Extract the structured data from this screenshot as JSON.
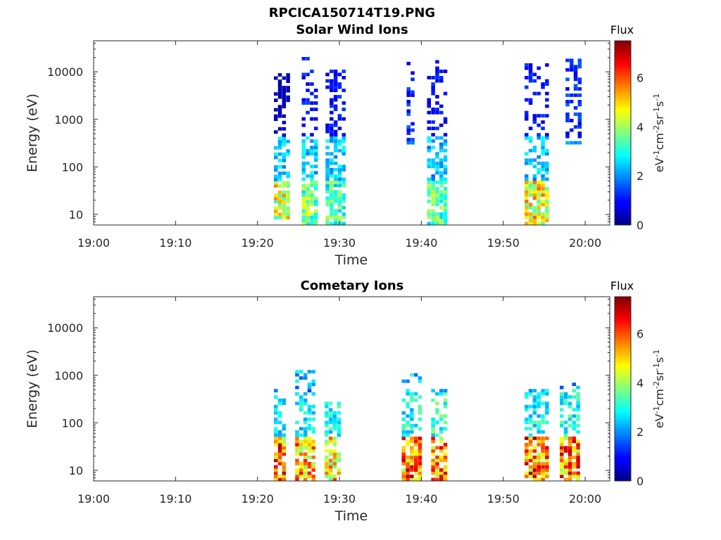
{
  "figure_title": "RPCICA150714T19.PNG",
  "colormap": "jet",
  "chart_data": [
    {
      "type": "heatmap",
      "title": "Solar Wind Ions",
      "xlabel": "Time",
      "ylabel": "Energy (eV)",
      "x_ticks": [
        "19:00",
        "19:10",
        "19:20",
        "19:30",
        "19:40",
        "19:50",
        "20:00"
      ],
      "x_range_minutes": [
        0,
        63
      ],
      "y_scale": "log",
      "y_ticks": [
        "10",
        "100",
        "1000",
        "10000"
      ],
      "y_range": [
        6,
        45000
      ],
      "colorbar": {
        "title": "Flux",
        "unit": "eV-1cm-2sr-1s-1",
        "ticks": [
          "0",
          "2",
          "4",
          "6"
        ],
        "range": [
          0,
          7.5
        ]
      },
      "clusters": [
        {
          "t_start": 22.0,
          "t_end": 23.8,
          "e_min": 8,
          "e_max": 9000,
          "low_peak": 5.6,
          "mid_value": 2.4,
          "high_value": 0.4
        },
        {
          "t_start": 25.4,
          "t_end": 27.2,
          "e_min": 6,
          "e_max": 18000,
          "low_peak": 4.6,
          "mid_value": 2.6,
          "high_value": 1.0
        },
        {
          "t_start": 28.3,
          "t_end": 30.4,
          "e_min": 6,
          "e_max": 12000,
          "low_peak": 4.2,
          "mid_value": 2.6,
          "high_value": 1.0
        },
        {
          "t_start": 38.2,
          "t_end": 39.2,
          "e_min": 300,
          "e_max": 14000,
          "low_peak": 0,
          "mid_value": 1.6,
          "high_value": 1.2
        },
        {
          "t_start": 40.7,
          "t_end": 43.1,
          "e_min": 6,
          "e_max": 16000,
          "low_peak": 4.4,
          "mid_value": 2.4,
          "high_value": 1.0
        },
        {
          "t_start": 52.6,
          "t_end": 55.5,
          "e_min": 6,
          "e_max": 15000,
          "low_peak": 5.9,
          "mid_value": 2.5,
          "high_value": 1.0
        },
        {
          "t_start": 57.6,
          "t_end": 59.2,
          "e_min": 300,
          "e_max": 18000,
          "low_peak": 0,
          "mid_value": 2.0,
          "high_value": 1.2
        }
      ]
    },
    {
      "type": "heatmap",
      "title": "Cometary Ions",
      "xlabel": "Time",
      "ylabel": "Energy (eV)",
      "x_ticks": [
        "19:00",
        "19:10",
        "19:20",
        "19:30",
        "19:40",
        "19:50",
        "20:00"
      ],
      "x_range_minutes": [
        0,
        63
      ],
      "y_scale": "log",
      "y_ticks": [
        "10",
        "100",
        "1000",
        "10000"
      ],
      "y_range": [
        6,
        45000
      ],
      "colorbar": {
        "title": "Flux",
        "unit": "eV-1cm-2sr-1s-1",
        "ticks": [
          "0",
          "2",
          "4",
          "6"
        ],
        "range": [
          0,
          7.5
        ]
      },
      "clusters": [
        {
          "t_start": 22.0,
          "t_end": 23.5,
          "e_min": 6,
          "e_max": 500,
          "low_peak": 7.1,
          "mid_value": 2.6,
          "high_value": 2.0
        },
        {
          "t_start": 24.6,
          "t_end": 26.9,
          "e_min": 6,
          "e_max": 1200,
          "low_peak": 6.8,
          "mid_value": 2.8,
          "high_value": 2.2
        },
        {
          "t_start": 28.2,
          "t_end": 30.2,
          "e_min": 6,
          "e_max": 250,
          "low_peak": 6.2,
          "mid_value": 3.0,
          "high_value": 2.4
        },
        {
          "t_start": 37.6,
          "t_end": 39.9,
          "e_min": 6,
          "e_max": 1100,
          "low_peak": 7.2,
          "mid_value": 3.0,
          "high_value": 2.4
        },
        {
          "t_start": 41.2,
          "t_end": 43.0,
          "e_min": 6,
          "e_max": 600,
          "low_peak": 7.0,
          "mid_value": 3.2,
          "high_value": 2.4
        },
        {
          "t_start": 52.6,
          "t_end": 55.5,
          "e_min": 6,
          "e_max": 450,
          "low_peak": 7.3,
          "mid_value": 2.9,
          "high_value": 2.2
        },
        {
          "t_start": 56.9,
          "t_end": 59.2,
          "e_min": 6,
          "e_max": 700,
          "low_peak": 7.2,
          "mid_value": 3.0,
          "high_value": 2.4
        }
      ]
    }
  ]
}
